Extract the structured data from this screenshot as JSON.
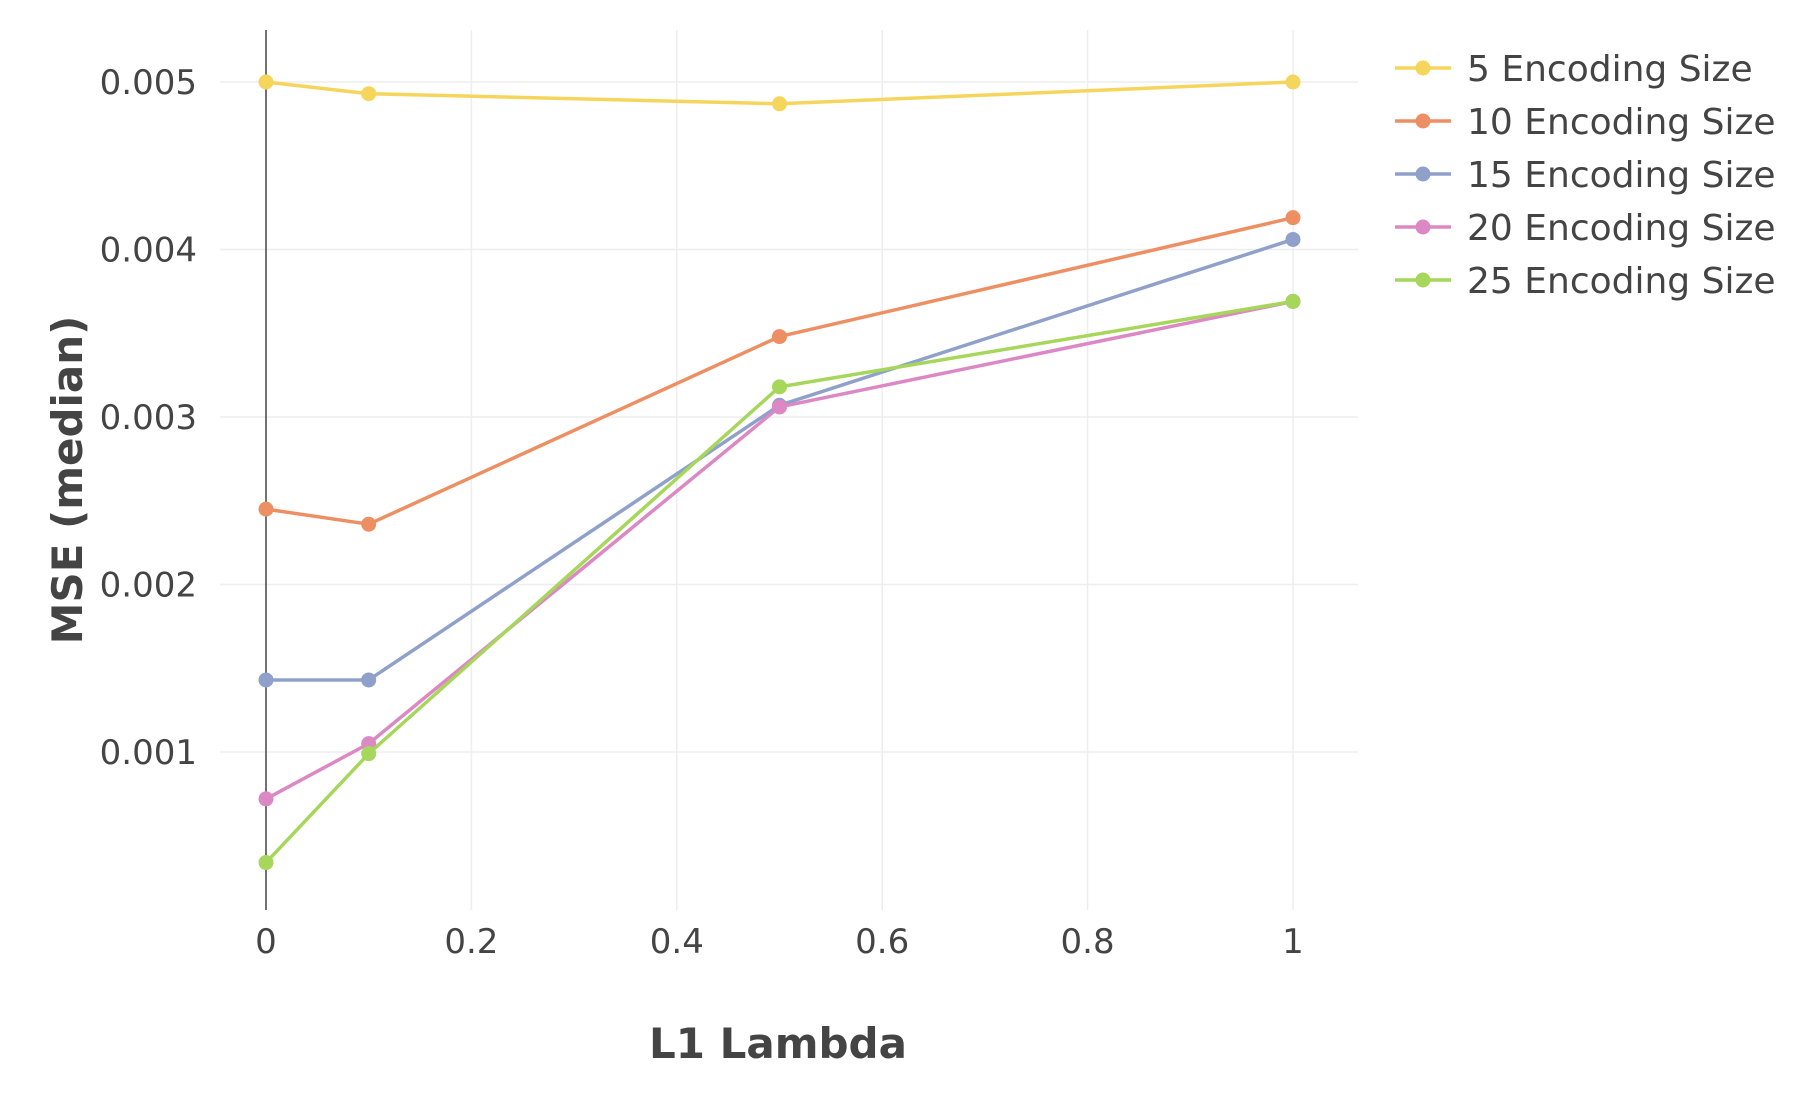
{
  "chart_data": {
    "type": "line",
    "xlabel": "L1 Lambda",
    "ylabel": "MSE (median)",
    "x": [
      0,
      0.1,
      0.5,
      1
    ],
    "xlim": [
      -0.05,
      1.06
    ],
    "ylim": [
      5e-05,
      0.00528
    ],
    "xticks": [
      0,
      0.2,
      0.4,
      0.6,
      0.8,
      1
    ],
    "xtick_labels": [
      "0",
      "0.2",
      "0.4",
      "0.6",
      "0.8",
      "1"
    ],
    "yticks": [
      0.001,
      0.002,
      0.003,
      0.004,
      0.005
    ],
    "ytick_labels": [
      "0.001",
      "0.002",
      "0.003",
      "0.004",
      "0.005"
    ],
    "grid": true,
    "legend_position": "top-right",
    "series": [
      {
        "name": "5 Encoding Size",
        "color": "#f6d55c",
        "values": [
          0.005,
          0.00493,
          0.00487,
          0.005
        ]
      },
      {
        "name": "10 Encoding Size",
        "color": "#ee8f63",
        "values": [
          0.00245,
          0.00236,
          0.00348,
          0.00419
        ]
      },
      {
        "name": "15 Encoding Size",
        "color": "#8fa0cb",
        "values": [
          0.00143,
          0.00143,
          0.00307,
          0.00406
        ]
      },
      {
        "name": "20 Encoding Size",
        "color": "#dc88c4",
        "values": [
          0.00072,
          0.00105,
          0.00306,
          0.00369
        ]
      },
      {
        "name": "25 Encoding Size",
        "color": "#a6d75b",
        "values": [
          0.00034,
          0.00099,
          0.00318,
          0.00369
        ]
      }
    ]
  }
}
